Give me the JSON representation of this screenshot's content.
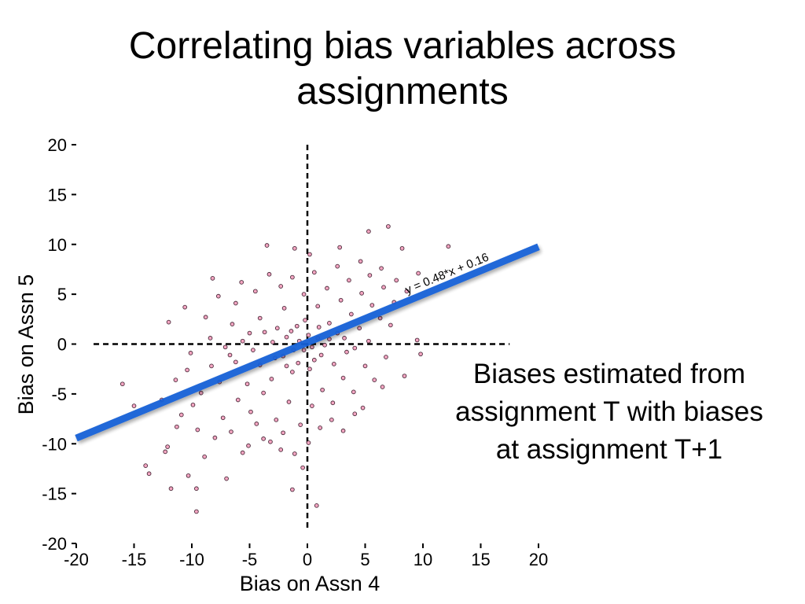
{
  "slide": {
    "title_lines": [
      "Correlating bias variables across",
      "assignments"
    ],
    "caption_lines": [
      "Biases estimated from",
      "assignment T with biases",
      "at assignment T+1"
    ]
  },
  "colors": {
    "marker_fill": "#f4a6c2",
    "marker_stroke": "#4a2a3a",
    "fit_line": "#1560d6",
    "axis": "#000000"
  },
  "chart_data": {
    "type": "scatter",
    "xlabel": "Bias on Assn 4",
    "ylabel": "Bias on Assn 5",
    "xlim": [
      -20,
      20
    ],
    "ylim": [
      -20,
      20
    ],
    "xticks": [
      -20,
      -15,
      -10,
      -5,
      0,
      5,
      10,
      15,
      20
    ],
    "yticks": [
      20,
      15,
      10,
      5,
      0,
      -5,
      -10,
      -15,
      -20
    ],
    "reference_lines": [
      {
        "axis": "x",
        "value": 0
      },
      {
        "axis": "y",
        "value": 0
      }
    ],
    "fit": {
      "label": "y = 0.48*x + 0.16",
      "slope": 0.48,
      "intercept": 0.16,
      "x_range": [
        -20,
        20
      ]
    },
    "points": [
      [
        -14.0,
        -12.2
      ],
      [
        -13.7,
        -13.0
      ],
      [
        -12.1,
        -10.3
      ],
      [
        -12.3,
        -10.8
      ],
      [
        -11.3,
        -8.3
      ],
      [
        -11.8,
        -14.5
      ],
      [
        -10.3,
        -13.2
      ],
      [
        -9.6,
        -14.5
      ],
      [
        -9.6,
        -16.8
      ],
      [
        -12.0,
        2.2
      ],
      [
        -10.6,
        3.7
      ],
      [
        -8.2,
        6.6
      ],
      [
        -6.2,
        4.1
      ],
      [
        -3.5,
        9.9
      ],
      [
        -1.1,
        9.6
      ],
      [
        0.2,
        9.0
      ],
      [
        7.0,
        11.8
      ],
      [
        12.2,
        9.8
      ],
      [
        8.2,
        9.6
      ],
      [
        9.6,
        7.1
      ],
      [
        5.3,
        11.3
      ],
      [
        2.8,
        9.7
      ],
      [
        0.8,
        -16.2
      ],
      [
        -1.3,
        -14.6
      ],
      [
        9.5,
        0.4
      ],
      [
        9.8,
        -1.0
      ],
      [
        -16.0,
        -4.0
      ],
      [
        -15.0,
        -6.2
      ],
      [
        -8.9,
        -11.3
      ],
      [
        -7.0,
        -13.5
      ],
      [
        -5.1,
        -10.2
      ],
      [
        -3.8,
        -9.5
      ],
      [
        -2.3,
        -10.6
      ],
      [
        -0.4,
        -12.4
      ],
      [
        4.8,
        -6.4
      ],
      [
        6.5,
        -4.3
      ],
      [
        8.4,
        -3.2
      ],
      [
        -9.9,
        -6.1
      ],
      [
        -7.3,
        -7.4
      ],
      [
        -8.3,
        -2.2
      ],
      [
        -10.4,
        -2.6
      ],
      [
        -7.1,
        -0.3
      ],
      [
        -6.2,
        -1.8
      ],
      [
        -5.2,
        -4.0
      ],
      [
        -4.1,
        -2.1
      ],
      [
        -3.1,
        -3.5
      ],
      [
        -2.1,
        -1.2
      ],
      [
        -1.3,
        -2.8
      ],
      [
        -0.3,
        -0.6
      ],
      [
        0.6,
        -1.6
      ],
      [
        1.5,
        -0.1
      ],
      [
        2.6,
        1.1
      ],
      [
        3.4,
        -0.8
      ],
      [
        4.5,
        1.6
      ],
      [
        5.3,
        0.3
      ],
      [
        6.3,
        2.6
      ],
      [
        7.2,
        1.9
      ],
      [
        -8.4,
        0.6
      ],
      [
        -6.5,
        2.0
      ],
      [
        -5.0,
        1.1
      ],
      [
        -4.1,
        2.6
      ],
      [
        -3.0,
        0.2
      ],
      [
        -2.0,
        3.6
      ],
      [
        -1.4,
        1.3
      ],
      [
        -0.2,
        2.4
      ],
      [
        0.9,
        3.8
      ],
      [
        1.9,
        2.1
      ],
      [
        2.9,
        4.4
      ],
      [
        3.8,
        3.0
      ],
      [
        4.7,
        5.1
      ],
      [
        5.6,
        3.9
      ],
      [
        6.6,
        5.7
      ],
      [
        7.5,
        4.2
      ],
      [
        -7.6,
        -3.8
      ],
      [
        -6.0,
        -5.6
      ],
      [
        -4.9,
        -6.8
      ],
      [
        -3.8,
        -4.9
      ],
      [
        -2.7,
        -7.6
      ],
      [
        -1.6,
        -5.8
      ],
      [
        -0.6,
        -8.1
      ],
      [
        0.4,
        -6.2
      ],
      [
        1.3,
        -4.6
      ],
      [
        2.2,
        -5.9
      ],
      [
        3.1,
        -3.4
      ],
      [
        4.0,
        -4.8
      ],
      [
        5.0,
        -2.2
      ],
      [
        5.8,
        -3.6
      ],
      [
        6.8,
        -1.3
      ],
      [
        -9.2,
        -4.9
      ],
      [
        -10.1,
        -0.9
      ],
      [
        -8.8,
        2.7
      ],
      [
        -7.7,
        4.8
      ],
      [
        -5.7,
        6.2
      ],
      [
        -4.5,
        5.3
      ],
      [
        -3.3,
        7.0
      ],
      [
        -2.3,
        5.8
      ],
      [
        -1.3,
        6.7
      ],
      [
        -0.3,
        5.0
      ],
      [
        0.6,
        7.2
      ],
      [
        1.7,
        5.6
      ],
      [
        2.6,
        7.8
      ],
      [
        3.6,
        6.4
      ],
      [
        4.6,
        8.3
      ],
      [
        5.4,
        6.9
      ],
      [
        6.4,
        7.6
      ],
      [
        7.7,
        6.4
      ],
      [
        8.6,
        5.3
      ],
      [
        -12.6,
        -5.6
      ],
      [
        -11.4,
        -3.6
      ],
      [
        -10.9,
        -7.1
      ],
      [
        -9.5,
        -8.6
      ],
      [
        -8.0,
        -9.4
      ],
      [
        -6.6,
        -8.8
      ],
      [
        -5.6,
        -10.9
      ],
      [
        -4.4,
        -8.0
      ],
      [
        -3.2,
        -9.8
      ],
      [
        -2.1,
        -8.9
      ],
      [
        -1.1,
        -11.0
      ],
      [
        0.1,
        -9.9
      ],
      [
        1.1,
        -8.4
      ],
      [
        2.1,
        -7.6
      ],
      [
        3.1,
        -8.7
      ],
      [
        4.1,
        -7.0
      ],
      [
        -2.6,
        1.6
      ],
      [
        -1.8,
        0.7
      ],
      [
        -0.9,
        1.8
      ],
      [
        0.1,
        0.9
      ],
      [
        1.0,
        1.7
      ],
      [
        1.9,
        0.5
      ],
      [
        -1.2,
        -0.6
      ],
      [
        -0.7,
        0.3
      ],
      [
        0.4,
        -0.3
      ],
      [
        0.9,
        0.6
      ],
      [
        -2.8,
        -1.4
      ],
      [
        -1.8,
        -2.2
      ],
      [
        -0.8,
        -1.9
      ],
      [
        0.2,
        -2.5
      ],
      [
        1.2,
        -1.1
      ],
      [
        2.3,
        -2.0
      ],
      [
        3.2,
        0.6
      ],
      [
        4.1,
        -0.4
      ],
      [
        -3.7,
        1.2
      ],
      [
        -4.7,
        -0.6
      ],
      [
        -5.6,
        0.3
      ],
      [
        -6.7,
        -1.1
      ]
    ]
  }
}
